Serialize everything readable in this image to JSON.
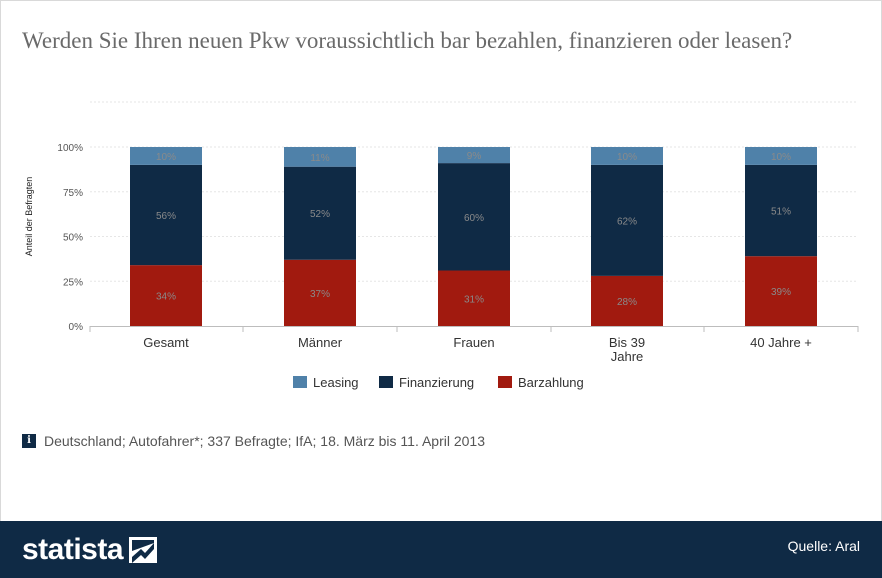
{
  "title": "Werden Sie Ihren neuen Pkw voraussichtlich bar bezahlen, finanzieren oder leasen?",
  "note": "Deutschland; Autofahrer*; 337 Befragte; IfA; 18. März bis 11. April 2013",
  "source": "Quelle: Aral",
  "brand": "statista",
  "icons": {
    "info": "info-icon",
    "logo": "statista-logo-icon"
  },
  "colors": {
    "Leasing": "#4f81a9",
    "Finanzierung": "#0f2a45",
    "Barzahlung": "#a11a0f",
    "footer": "#0f2a45"
  },
  "chart_data": {
    "type": "bar",
    "stacked": true,
    "title": "Werden Sie Ihren neuen Pkw voraussichtlich bar bezahlen, finanzieren oder leasen?",
    "xlabel": "",
    "ylabel": "Anteil der Befragten",
    "ylim": [
      0,
      100
    ],
    "yticks": [
      "0%",
      "25%",
      "50%",
      "75%",
      "100%"
    ],
    "categories": [
      "Gesamt",
      "Männer",
      "Frauen",
      "Bis 39 Jahre",
      "40 Jahre +"
    ],
    "category_lines": [
      [
        "Gesamt"
      ],
      [
        "Männer"
      ],
      [
        "Frauen"
      ],
      [
        "Bis 39",
        "Jahre"
      ],
      [
        "40 Jahre +"
      ]
    ],
    "series": [
      {
        "name": "Barzahlung",
        "values": [
          34,
          37,
          31,
          28,
          39
        ],
        "labels": [
          "34%",
          "37%",
          "31%",
          "28%",
          "39%"
        ]
      },
      {
        "name": "Finanzierung",
        "values": [
          56,
          52,
          60,
          62,
          51
        ],
        "labels": [
          "56%",
          "52%",
          "60%",
          "62%",
          "51%"
        ]
      },
      {
        "name": "Leasing",
        "values": [
          10,
          11,
          9,
          10,
          10
        ],
        "labels": [
          "10%",
          "11%",
          "9%",
          "10%",
          "10%"
        ]
      }
    ],
    "legend": {
      "placement": "bottom",
      "order": [
        "Leasing",
        "Finanzierung",
        "Barzahlung"
      ]
    },
    "grid": true
  }
}
